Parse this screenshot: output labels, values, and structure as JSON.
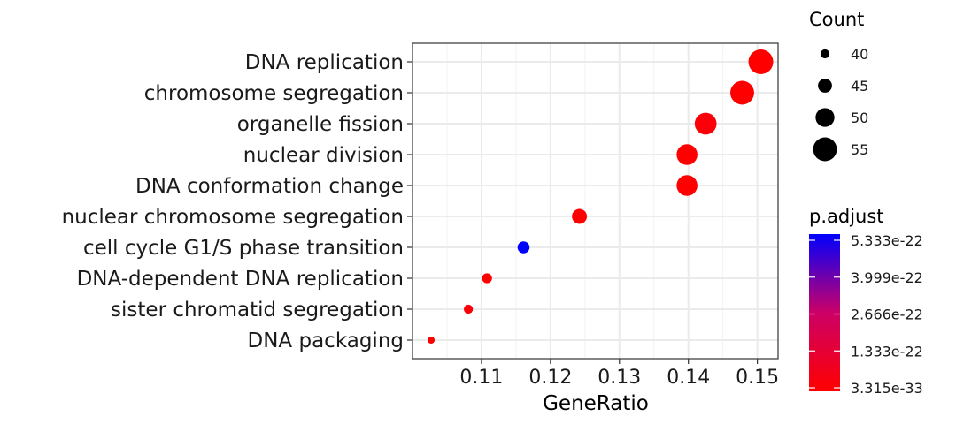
{
  "chart_data": {
    "type": "scatter",
    "xlabel": "GeneRatio",
    "xlim": [
      0.1,
      0.153
    ],
    "x_ticks": [
      0.11,
      0.12,
      0.13,
      0.14,
      0.15
    ],
    "x_tick_labels": [
      "0.11",
      "0.12",
      "0.13",
      "0.14",
      "0.15"
    ],
    "grid": true,
    "terms": [
      {
        "label": "DNA replication",
        "gene_ratio": 0.1505,
        "count": 56,
        "p_adjust": 4e-26
      },
      {
        "label": "chromosome segregation",
        "gene_ratio": 0.1478,
        "count": 55,
        "p_adjust": 8e-25
      },
      {
        "label": "organelle fission",
        "gene_ratio": 0.1425,
        "count": 53,
        "p_adjust": 2e-23
      },
      {
        "label": "nuclear division",
        "gene_ratio": 0.1398,
        "count": 52,
        "p_adjust": 4e-25
      },
      {
        "label": "DNA conformation change",
        "gene_ratio": 0.1398,
        "count": 52,
        "p_adjust": 2e-26
      },
      {
        "label": "nuclear chromosome segregation",
        "gene_ratio": 0.1242,
        "count": 46,
        "p_adjust": 6e-25
      },
      {
        "label": "cell cycle G1/S phase transition",
        "gene_ratio": 0.1161,
        "count": 43,
        "p_adjust": 5.333e-22
      },
      {
        "label": "DNA-dependent DNA replication",
        "gene_ratio": 0.1108,
        "count": 41,
        "p_adjust": 2e-25
      },
      {
        "label": "sister chromatid segregation",
        "gene_ratio": 0.1081,
        "count": 40,
        "p_adjust": 1.8e-23
      },
      {
        "label": "DNA packaging",
        "gene_ratio": 0.1027,
        "count": 38,
        "p_adjust": 3.315e-33
      }
    ],
    "size_legend": {
      "title": "Count",
      "values": [
        40,
        45,
        50,
        55
      ],
      "labels": [
        "40",
        "45",
        "50",
        "55"
      ]
    },
    "color_legend": {
      "title": "p.adjust",
      "min": 3.315e-33,
      "max": 5.333e-22,
      "low_color": "#ff0000",
      "high_color": "#0000ff",
      "tick_values": [
        5.333e-22,
        3.999e-22,
        2.666e-22,
        1.333e-22,
        3.315e-33
      ],
      "tick_labels": [
        "5.333e-22",
        "3.999e-22",
        "2.666e-22",
        "1.333e-22",
        "3.315e-33"
      ]
    }
  }
}
